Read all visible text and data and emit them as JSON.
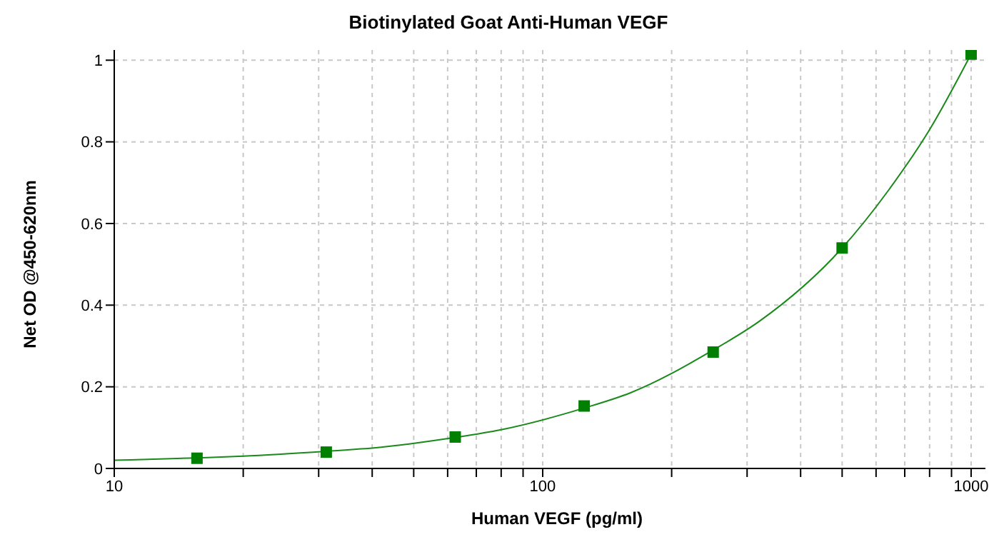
{
  "chart_data": {
    "type": "scatter",
    "title": "Biotinylated Goat Anti-Human VEGF",
    "xlabel": "Human VEGF (pg/ml)",
    "ylabel": "Net OD @450-620nm",
    "series": [
      {
        "type": "line",
        "color": "#1a8a1a",
        "marker": "none",
        "x": [
          10,
          15.6,
          20,
          31.25,
          40,
          62.5,
          80,
          125,
          160,
          250,
          320,
          500,
          640,
          800,
          1000
        ],
        "values": [
          0.02,
          0.026,
          0.03,
          0.042,
          0.05,
          0.076,
          0.095,
          0.148,
          0.185,
          0.29,
          0.36,
          0.54,
          0.68,
          0.83,
          1.015
        ]
      },
      {
        "color": "#008000",
        "marker": "square",
        "x": [
          15.6,
          31.25,
          62.5,
          125,
          250,
          500,
          1000
        ],
        "values": [
          0.025,
          0.04,
          0.077,
          0.153,
          0.285,
          0.54,
          1.015
        ]
      }
    ],
    "log": "x",
    "xlim": [
      10,
      1080
    ],
    "xticks": [
      10,
      {
        "value": 20,
        "label": null
      },
      {
        "value": 30,
        "label": null
      },
      {
        "value": 40,
        "label": null
      },
      {
        "value": 50,
        "label": null
      },
      {
        "value": 60,
        "label": null
      },
      {
        "value": 70,
        "label": null
      },
      {
        "value": 80,
        "label": null
      },
      {
        "value": 90,
        "label": null
      },
      100,
      {
        "value": 200,
        "label": null
      },
      {
        "value": 300,
        "label": null
      },
      {
        "value": 400,
        "label": null
      },
      {
        "value": 500,
        "label": null
      },
      {
        "value": 600,
        "label": null
      },
      {
        "value": 700,
        "label": null
      },
      {
        "value": 800,
        "label": null
      },
      {
        "value": 900,
        "label": null
      },
      1000
    ],
    "ylim": [
      0,
      1.025
    ],
    "yticks": [
      0,
      0.2,
      0.4,
      0.6,
      0.8,
      1
    ],
    "grid": true
  }
}
